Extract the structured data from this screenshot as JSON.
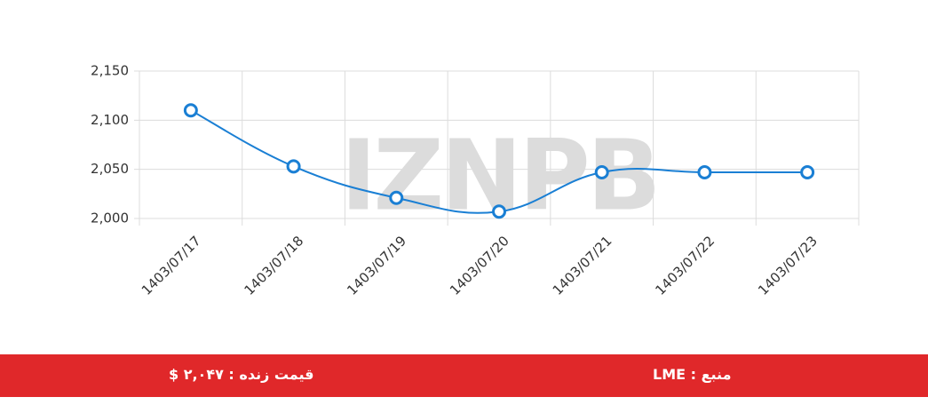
{
  "chart_data": {
    "type": "line",
    "watermark": "IZNPB",
    "categories": [
      "1403/07/17",
      "1403/07/18",
      "1403/07/19",
      "1403/07/20",
      "1403/07/21",
      "1403/07/22",
      "1403/07/23"
    ],
    "series": [
      {
        "color": "#1a7fd4",
        "values": [
          2110,
          2053,
          2021,
          2007,
          2047,
          2047,
          2047
        ]
      }
    ],
    "ylim": [
      2000,
      2150
    ],
    "yticks": [
      {
        "value": 2000,
        "label": "2,000"
      },
      {
        "value": 2050,
        "label": "2,050"
      },
      {
        "value": 2100,
        "label": "2,100"
      },
      {
        "value": 2150,
        "label": "2,150"
      }
    ],
    "grid": true
  },
  "footer": {
    "price": "قیمت زنده : ۲,۰۴۷ $",
    "source": "منبع : LME"
  }
}
